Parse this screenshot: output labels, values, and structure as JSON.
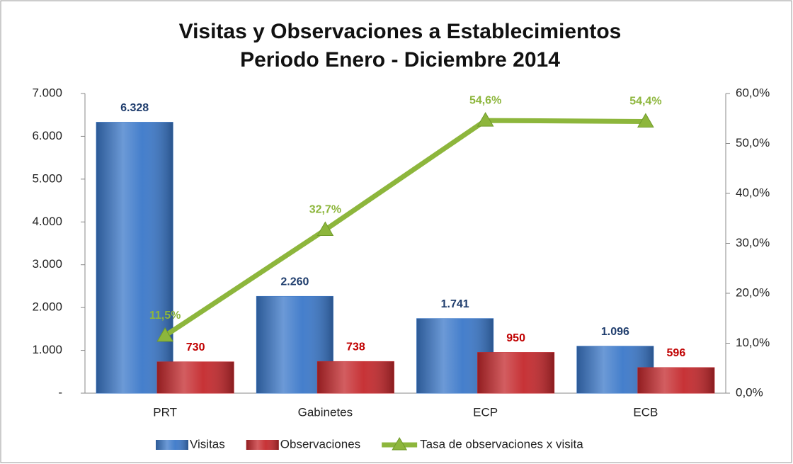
{
  "chart_data": {
    "type": "bar",
    "title": "Visitas y Observaciones a Establecimientos",
    "subtitle": "Periodo Enero - Diciembre 2014",
    "categories": [
      "PRT",
      "Gabinetes",
      "ECP",
      "ECB"
    ],
    "series": [
      {
        "name": "Visitas",
        "type": "bar",
        "color": "#3b78c9",
        "label_color": "#1f3d6d",
        "values": [
          6328,
          2260,
          1741,
          1096
        ],
        "value_labels": [
          "6.328",
          "2.260",
          "1.741",
          "1.096"
        ]
      },
      {
        "name": "Observaciones",
        "type": "bar",
        "color": "#c4282c",
        "label_color": "#c00000",
        "values": [
          730,
          738,
          950,
          596
        ]
      },
      {
        "name": "Tasa de observaciones x visita",
        "type": "line",
        "axis": "y2",
        "color": "#8db63c",
        "label_color": "#8db63c",
        "values": [
          11.5,
          32.7,
          54.6,
          54.4
        ],
        "value_labels": [
          "11,5%",
          "32,7%",
          "54,6%",
          "54,4%"
        ]
      }
    ],
    "ylim": [
      0,
      7000
    ],
    "yticks": [
      {
        "value": 0,
        "label": "-"
      },
      {
        "value": 1000,
        "label": "1.000"
      },
      {
        "value": 2000,
        "label": "2.000"
      },
      {
        "value": 3000,
        "label": "3.000"
      },
      {
        "value": 4000,
        "label": "4.000"
      },
      {
        "value": 5000,
        "label": "5.000"
      },
      {
        "value": 6000,
        "label": "6.000"
      },
      {
        "value": 7000,
        "label": "7.000"
      }
    ],
    "y2lim": [
      0,
      60
    ],
    "y2ticks": [
      {
        "value": 0,
        "label": "0,0%"
      },
      {
        "value": 10,
        "label": "10,0%"
      },
      {
        "value": 20,
        "label": "20,0%"
      },
      {
        "value": 30,
        "label": "30,0%"
      },
      {
        "value": 40,
        "label": "40,0%"
      },
      {
        "value": 50,
        "label": "50,0%"
      },
      {
        "value": 60,
        "label": "60,0%"
      }
    ],
    "legend": "bottom"
  }
}
